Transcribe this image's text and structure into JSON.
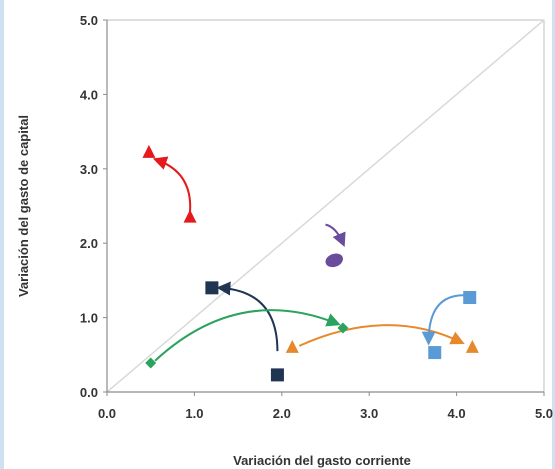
{
  "chart_data": {
    "type": "scatter",
    "title": "",
    "xlabel": "Variación del gasto corriente",
    "ylabel": "Variación del gasto de capital",
    "xlim": [
      0,
      5
    ],
    "ylim": [
      0,
      5
    ],
    "x_ticks": [
      "0.0",
      "1.0",
      "2.0",
      "3.0",
      "4.0",
      "5.0"
    ],
    "y_ticks": [
      "0.0",
      "1.0",
      "2.0",
      "3.0",
      "4.0",
      "5.0"
    ],
    "grid": false,
    "legend": "none",
    "reference_line": {
      "from": [
        0,
        0
      ],
      "to": [
        5,
        5
      ],
      "color": "#d9d9d9"
    },
    "series": [
      {
        "color": "#e41a1c",
        "marker": "triangle",
        "points": [
          {
            "x": 0.95,
            "y": 2.35
          },
          {
            "x": 0.48,
            "y": 3.22
          }
        ],
        "arrow": {
          "from": [
            0.95,
            2.42
          ],
          "ctrl": [
            0.98,
            2.95
          ],
          "to": [
            0.57,
            3.12
          ]
        }
      },
      {
        "color": "#6a4c9c",
        "marker": "ellipse",
        "points": [
          {
            "x": 2.6,
            "y": 1.77
          }
        ],
        "arrow": {
          "from": [
            2.5,
            2.25
          ],
          "ctrl": [
            2.62,
            2.22
          ],
          "to": [
            2.7,
            2.0
          ]
        }
      },
      {
        "color": "#1f3552",
        "marker": "square",
        "points": [
          {
            "x": 1.95,
            "y": 0.23
          },
          {
            "x": 1.2,
            "y": 1.4
          }
        ],
        "arrow": {
          "from": [
            1.95,
            0.55
          ],
          "ctrl": [
            1.95,
            1.35
          ],
          "to": [
            1.3,
            1.4
          ]
        }
      },
      {
        "color": "#2ca25f",
        "marker": "diamond",
        "points": [
          {
            "x": 0.5,
            "y": 0.39
          },
          {
            "x": 2.7,
            "y": 0.86
          }
        ],
        "arrow": {
          "from": [
            0.55,
            0.42
          ],
          "ctrl": [
            1.5,
            1.45
          ],
          "to": [
            2.63,
            0.92
          ]
        }
      },
      {
        "color": "#e6892c",
        "marker": "triangle",
        "points": [
          {
            "x": 2.12,
            "y": 0.6
          },
          {
            "x": 4.18,
            "y": 0.6
          }
        ],
        "arrow": {
          "from": [
            2.2,
            0.62
          ],
          "ctrl": [
            3.2,
            1.15
          ],
          "to": [
            4.05,
            0.67
          ]
        }
      },
      {
        "color": "#5b9bd5",
        "marker": "square",
        "points": [
          {
            "x": 4.15,
            "y": 1.27
          },
          {
            "x": 3.75,
            "y": 0.53
          }
        ],
        "arrow": {
          "from": [
            4.08,
            1.3
          ],
          "ctrl": [
            3.68,
            1.3
          ],
          "to": [
            3.68,
            0.68
          ]
        }
      }
    ]
  }
}
